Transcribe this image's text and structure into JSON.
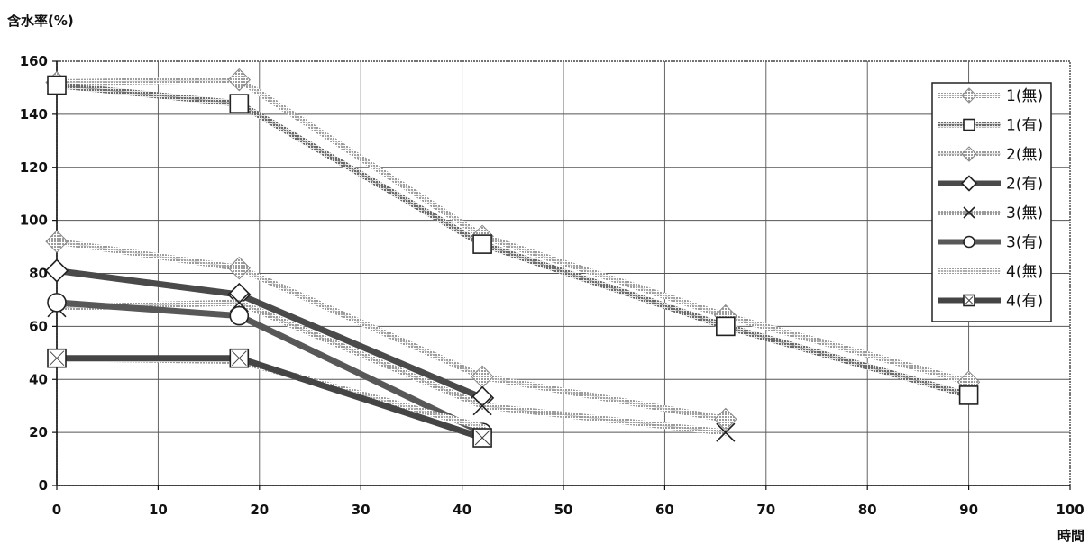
{
  "chart_data": {
    "type": "line",
    "ylabel": "含水率(%)",
    "xlabel": "時間",
    "xlim": [
      0,
      100
    ],
    "ylim": [
      0,
      160
    ],
    "x_ticks": [
      0,
      10,
      20,
      30,
      40,
      50,
      60,
      70,
      80,
      90,
      100
    ],
    "y_ticks": [
      0,
      20,
      40,
      60,
      80,
      100,
      120,
      140,
      160
    ],
    "grid": true,
    "legend_position": "top-right",
    "series": [
      {
        "name": "1(無)",
        "marker": "diamond-filled",
        "line_color": "#c4c4c4",
        "line_style": "dotted-heavy",
        "points": [
          [
            0,
            152
          ],
          [
            18,
            153
          ],
          [
            42,
            94
          ],
          [
            66,
            64
          ],
          [
            90,
            39
          ]
        ]
      },
      {
        "name": "1(有)",
        "marker": "square-open",
        "line_color": "#6e6e6e",
        "line_style": "dotted-heavy",
        "points": [
          [
            0,
            151
          ],
          [
            18,
            144
          ],
          [
            42,
            91
          ],
          [
            66,
            60
          ],
          [
            90,
            34
          ]
        ]
      },
      {
        "name": "2(無)",
        "marker": "diamond-filled",
        "line_color": "#b4b4b4",
        "line_style": "dotted",
        "points": [
          [
            0,
            92
          ],
          [
            18,
            82
          ],
          [
            42,
            41
          ],
          [
            66,
            25
          ]
        ]
      },
      {
        "name": "2(有)",
        "marker": "diamond-open",
        "line_color": "#4a4a4a",
        "line_style": "solid",
        "points": [
          [
            0,
            81
          ],
          [
            18,
            72
          ],
          [
            42,
            33
          ]
        ]
      },
      {
        "name": "3(無)",
        "marker": "x",
        "line_color": "#9a9a9a",
        "line_style": "dotted",
        "points": [
          [
            0,
            67
          ],
          [
            18,
            69
          ],
          [
            42,
            30
          ],
          [
            66,
            20
          ]
        ]
      },
      {
        "name": "3(有)",
        "marker": "circle-open",
        "line_color": "#585858",
        "line_style": "solid",
        "points": [
          [
            0,
            69
          ],
          [
            18,
            64
          ],
          [
            42,
            20
          ]
        ]
      },
      {
        "name": "4(無)",
        "marker": "none",
        "line_color": "#d0d0d0",
        "line_style": "dotted",
        "points": [
          [
            0,
            48
          ],
          [
            18,
            47
          ],
          [
            42,
            22
          ]
        ]
      },
      {
        "name": "4(有)",
        "marker": "square-x",
        "line_color": "#454545",
        "line_style": "solid",
        "points": [
          [
            0,
            48
          ],
          [
            18,
            48
          ],
          [
            42,
            18
          ]
        ]
      }
    ]
  }
}
